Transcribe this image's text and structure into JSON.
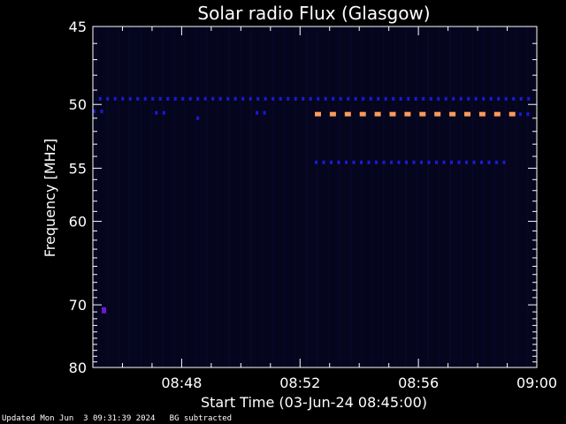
{
  "chart_data": {
    "type": "heatmap",
    "title": "Solar radio Flux (Glasgow)",
    "xlabel": "Start Time (03-Jun-24 08:45:00)",
    "ylabel": "Frequency [MHz]",
    "x_ticks": [
      "08:48",
      "08:52",
      "08:56",
      "09:00"
    ],
    "x_tick_minutes": [
      3,
      7,
      11,
      15
    ],
    "x_range_minutes": [
      0,
      15
    ],
    "y_ticks": [
      45,
      50,
      55,
      60,
      70,
      80
    ],
    "y_range_mhz": [
      45,
      80
    ],
    "y_scale": "reciprocal",
    "grid": false,
    "colors": {
      "background": "#000000",
      "plot_background": "#05051e",
      "axis": "#ffffff",
      "weak_signal": "#1a1ad8",
      "medium_signal": "#3b2cf0",
      "strong_signal": "#ff9a5a",
      "spot": "#6a1ad0"
    },
    "features": [
      {
        "level": "weak",
        "freq_mhz": 49.6,
        "minute_start": 0.2,
        "minute_end": 14.8,
        "pattern": "periodic"
      },
      {
        "level": "weak",
        "freq_mhz": 50.5,
        "minute_start": 0.0,
        "minute_end": 0.5,
        "pattern": "periodic"
      },
      {
        "level": "weak",
        "freq_mhz": 50.6,
        "minute_start": 2.1,
        "minute_end": 2.4,
        "pattern": "periodic"
      },
      {
        "level": "weak",
        "freq_mhz": 50.6,
        "minute_start": 5.5,
        "minute_end": 5.8,
        "pattern": "periodic"
      },
      {
        "level": "weak",
        "freq_mhz": 51.0,
        "minute_start": 3.5,
        "minute_end": 3.6,
        "pattern": "periodic"
      },
      {
        "level": "strong",
        "freq_mhz": 50.7,
        "minute_start": 7.5,
        "minute_end": 14.3,
        "pattern": "periodic"
      },
      {
        "level": "weak",
        "freq_mhz": 50.7,
        "minute_start": 14.4,
        "minute_end": 14.9,
        "pattern": "periodic"
      },
      {
        "level": "weak",
        "freq_mhz": 54.5,
        "minute_start": 7.5,
        "minute_end": 14.1,
        "pattern": "periodic"
      },
      {
        "level": "spot",
        "freq_mhz": 70.7,
        "minute_start": 0.3,
        "minute_end": 0.45,
        "pattern": "solid"
      }
    ]
  },
  "footer": {
    "updated": "Updated Mon Jun  3 09:31:39 2024",
    "bg_note": "BG subtracted"
  }
}
